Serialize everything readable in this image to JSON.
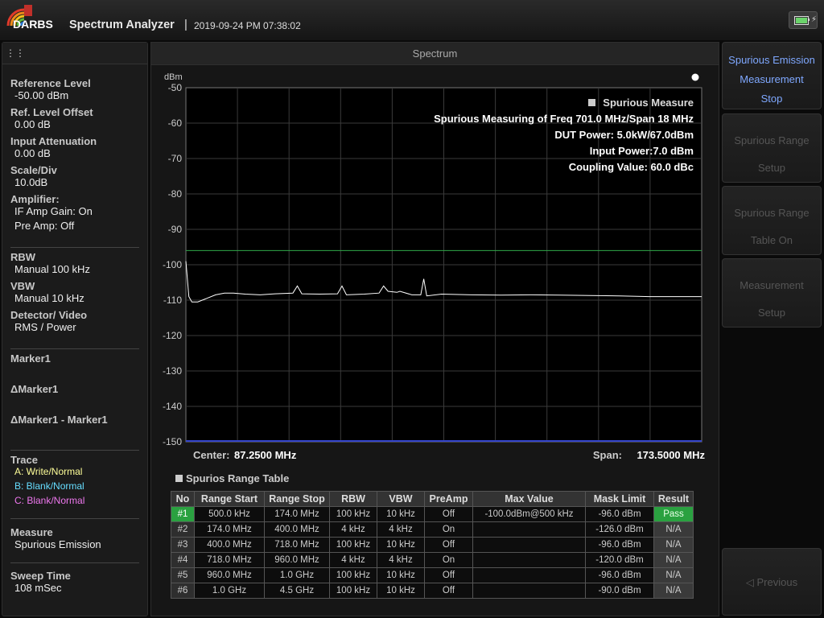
{
  "header": {
    "logo_text": "DARBS",
    "app_title": "Spectrum Analyzer",
    "separator": "|",
    "datetime": "2019-09-24 PM 07:38:02"
  },
  "left_panel": {
    "reference_level_label": "Reference Level",
    "reference_level_value": "-50.00 dBm",
    "ref_offset_label": "Ref. Level Offset",
    "ref_offset_value": "0.00 dB",
    "input_atten_label": "Input Attenuation",
    "input_atten_value": "0.00 dB",
    "scale_label": "Scale/Div",
    "scale_value": "10.0dB",
    "amplifier_label": "Amplifier:",
    "if_amp": "IF Amp Gain: On",
    "pre_amp": "Pre Amp: Off",
    "rbw_label": "RBW",
    "rbw_value": "Manual 100 kHz",
    "vbw_label": "VBW",
    "vbw_value": "Manual 10 kHz",
    "detector_label": "Detector/ Video",
    "detector_value": "RMS / Power",
    "marker1": "Marker1",
    "dmarker1": "ΔMarker1",
    "dmarker_diff": "ΔMarker1 - Marker1",
    "trace_label": "Trace",
    "trace_a": "A: Write/Normal",
    "trace_b": "B: Blank/Normal",
    "trace_c": "C: Blank/Normal",
    "measure_label": "Measure",
    "measure_value": "Spurious Emission",
    "sweep_label": "Sweep Time",
    "sweep_value": "108 mSec",
    "colors": {
      "trace_a": "#ffff99",
      "trace_b": "#66ddff",
      "trace_c": "#ee77ee"
    }
  },
  "center": {
    "title": "Spectrum",
    "center_label": "Center:",
    "center_value": "87.2500 MHz",
    "span_label": "Span:",
    "span_value": "173.5000 MHz",
    "table_title": "Spurios Range Table"
  },
  "overlay": {
    "title": "Spurious Measure",
    "line1": "Spurious Measuring of Freq 701.0 MHz/Span 18 MHz",
    "line2": "DUT Power: 5.0kW/67.0dBm",
    "line3": "Input Power:7.0 dBm",
    "line4": "Coupling Value: 60.0 dBc"
  },
  "chart_data": {
    "type": "line",
    "ylabel": "dBm",
    "ylim": [
      -150,
      -50
    ],
    "y_ticks": [
      "-50",
      "-60",
      "-70",
      "-80",
      "-90",
      "-100",
      "-110",
      "-120",
      "-130",
      "-140",
      "-150"
    ],
    "x_center_mhz": 87.25,
    "x_span_mhz": 173.5,
    "xlim_mhz": [
      0.5,
      174.0
    ],
    "grid": true,
    "limit_line_dbm": -96,
    "series": [
      {
        "color": "#ffffff",
        "x_mhz": [
          0.5,
          1.5,
          2.5,
          4.5,
          7.5,
          10.5,
          13.5,
          16.5,
          20.5,
          25.5,
          30.5,
          36.5,
          38.0,
          39.5,
          45.5,
          51.5,
          53.0,
          54.5,
          60.5,
          65.5,
          67.0,
          68.5,
          71.5,
          72.5,
          76.5,
          79.5,
          80.5,
          81.5,
          86.5,
          96.5,
          106.5,
          116.5,
          126.5,
          136.5,
          146.5,
          156.5,
          166.5,
          174.0
        ],
        "y_dbm": [
          -99,
          -109,
          -110.5,
          -110.5,
          -109.5,
          -108.5,
          -108,
          -108,
          -108.3,
          -108.5,
          -108.2,
          -108,
          -106,
          -108.2,
          -108.3,
          -108.2,
          -106,
          -108.5,
          -108.3,
          -108,
          -106,
          -107.5,
          -107.8,
          -107.5,
          -108.5,
          -108.5,
          -104,
          -108.8,
          -108.3,
          -108.5,
          -108.6,
          -108.5,
          -108.6,
          -108.7,
          -108.8,
          -109,
          -109,
          -109
        ]
      }
    ]
  },
  "range_table": {
    "headers": [
      "No",
      "Range Start",
      "Range Stop",
      "RBW",
      "VBW",
      "PreAmp",
      "Max Value",
      "Mask Limit",
      "Result"
    ],
    "rows": [
      [
        "#1",
        "500.0 kHz",
        "174.0 MHz",
        "100 kHz",
        "10 kHz",
        "Off",
        "-100.0dBm@500 kHz",
        "-96.0 dBm",
        "Pass"
      ],
      [
        "#2",
        "174.0 MHz",
        "400.0 MHz",
        "4 kHz",
        "4 kHz",
        "On",
        "",
        "-126.0 dBm",
        "N/A"
      ],
      [
        "#3",
        "400.0 MHz",
        "718.0 MHz",
        "100 kHz",
        "10 kHz",
        "Off",
        "",
        "-96.0 dBm",
        "N/A"
      ],
      [
        "#4",
        "718.0 MHz",
        "960.0 MHz",
        "4 kHz",
        "4 kHz",
        "On",
        "",
        "-120.0 dBm",
        "N/A"
      ],
      [
        "#5",
        "960.0 MHz",
        "1.0 GHz",
        "100 kHz",
        "10 kHz",
        "Off",
        "",
        "-96.0 dBm",
        "N/A"
      ],
      [
        "#6",
        "1.0 GHz",
        "4.5 GHz",
        "100 kHz",
        "10 kHz",
        "Off",
        "",
        "-90.0 dBm",
        "N/A"
      ]
    ]
  },
  "right_panel": {
    "spurious_emission": [
      "Spurious Emission",
      "Measurement",
      "Stop"
    ],
    "range_setup": [
      "Spurious Range",
      "Setup"
    ],
    "range_table_on": [
      "Spurious Range",
      "Table On"
    ],
    "measurement_setup": [
      "Measurement",
      "Setup"
    ],
    "previous": "◁ Previous"
  }
}
